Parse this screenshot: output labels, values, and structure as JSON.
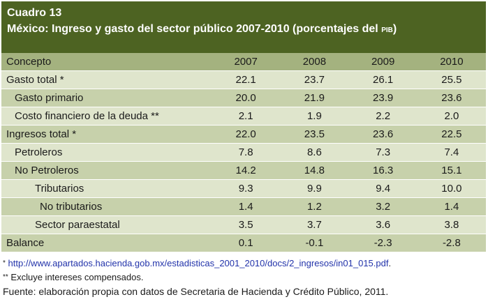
{
  "header": {
    "number": "Cuadro 13",
    "title": "México: Ingreso y gasto del sector público 2007-2010 (porcentajes del ",
    "pib": "PIB",
    "title_end": ")"
  },
  "table": {
    "columns": [
      "Concepto",
      "2007",
      "2008",
      "2009",
      "2010"
    ],
    "rows": [
      {
        "label": "Gasto total *",
        "values": [
          "22.1",
          "23.7",
          "26.1",
          "25.5"
        ]
      },
      {
        "label": "Gasto primario",
        "values": [
          "20.0",
          "21.9",
          "23.9",
          "23.6"
        ]
      },
      {
        "label": "Costo financiero de la deuda **",
        "values": [
          "2.1",
          "1.9",
          "2.2",
          "2.0"
        ]
      },
      {
        "label": "Ingresos total *",
        "values": [
          "22.0",
          "23.5",
          "23.6",
          "22.5"
        ]
      },
      {
        "label": "Petroleros",
        "values": [
          "7.8",
          "8.6",
          "7.3",
          "7.4"
        ]
      },
      {
        "label": "No Petroleros",
        "values": [
          "14.2",
          "14.8",
          "16.3",
          "15.1"
        ]
      },
      {
        "label": "Tributarios",
        "values": [
          "9.3",
          "9.9",
          "9.4",
          "10.0"
        ]
      },
      {
        "label": "No tributarios",
        "values": [
          "1.4",
          "1.2",
          "3.2",
          "1.4"
        ]
      },
      {
        "label": "Sector paraestatal",
        "values": [
          "3.5",
          "3.7",
          "3.6",
          "3.8"
        ]
      },
      {
        "label": "Balance",
        "values": [
          "0.1",
          "-0.1",
          "-2.3",
          "-2.8"
        ]
      }
    ]
  },
  "notes": {
    "note1_mark": "*",
    "note1_link": "http://www.apartados.hacienda.gob.mx/estadisticas_2001_2010/docs/2_ingresos/in01_015.pdf",
    "note1_end": ".",
    "note2_mark": "**",
    "note2_text": "Excluye intereses compensados.",
    "source": "Fuente: elaboración propia con datos de Secretaria de Hacienda y Crédito Público, 2011."
  },
  "colors": {
    "header_bg": "#4d6322",
    "column_header_bg": "#a4b27f",
    "row_light": "#dfe5cc",
    "row_dark": "#c7d1ab"
  }
}
